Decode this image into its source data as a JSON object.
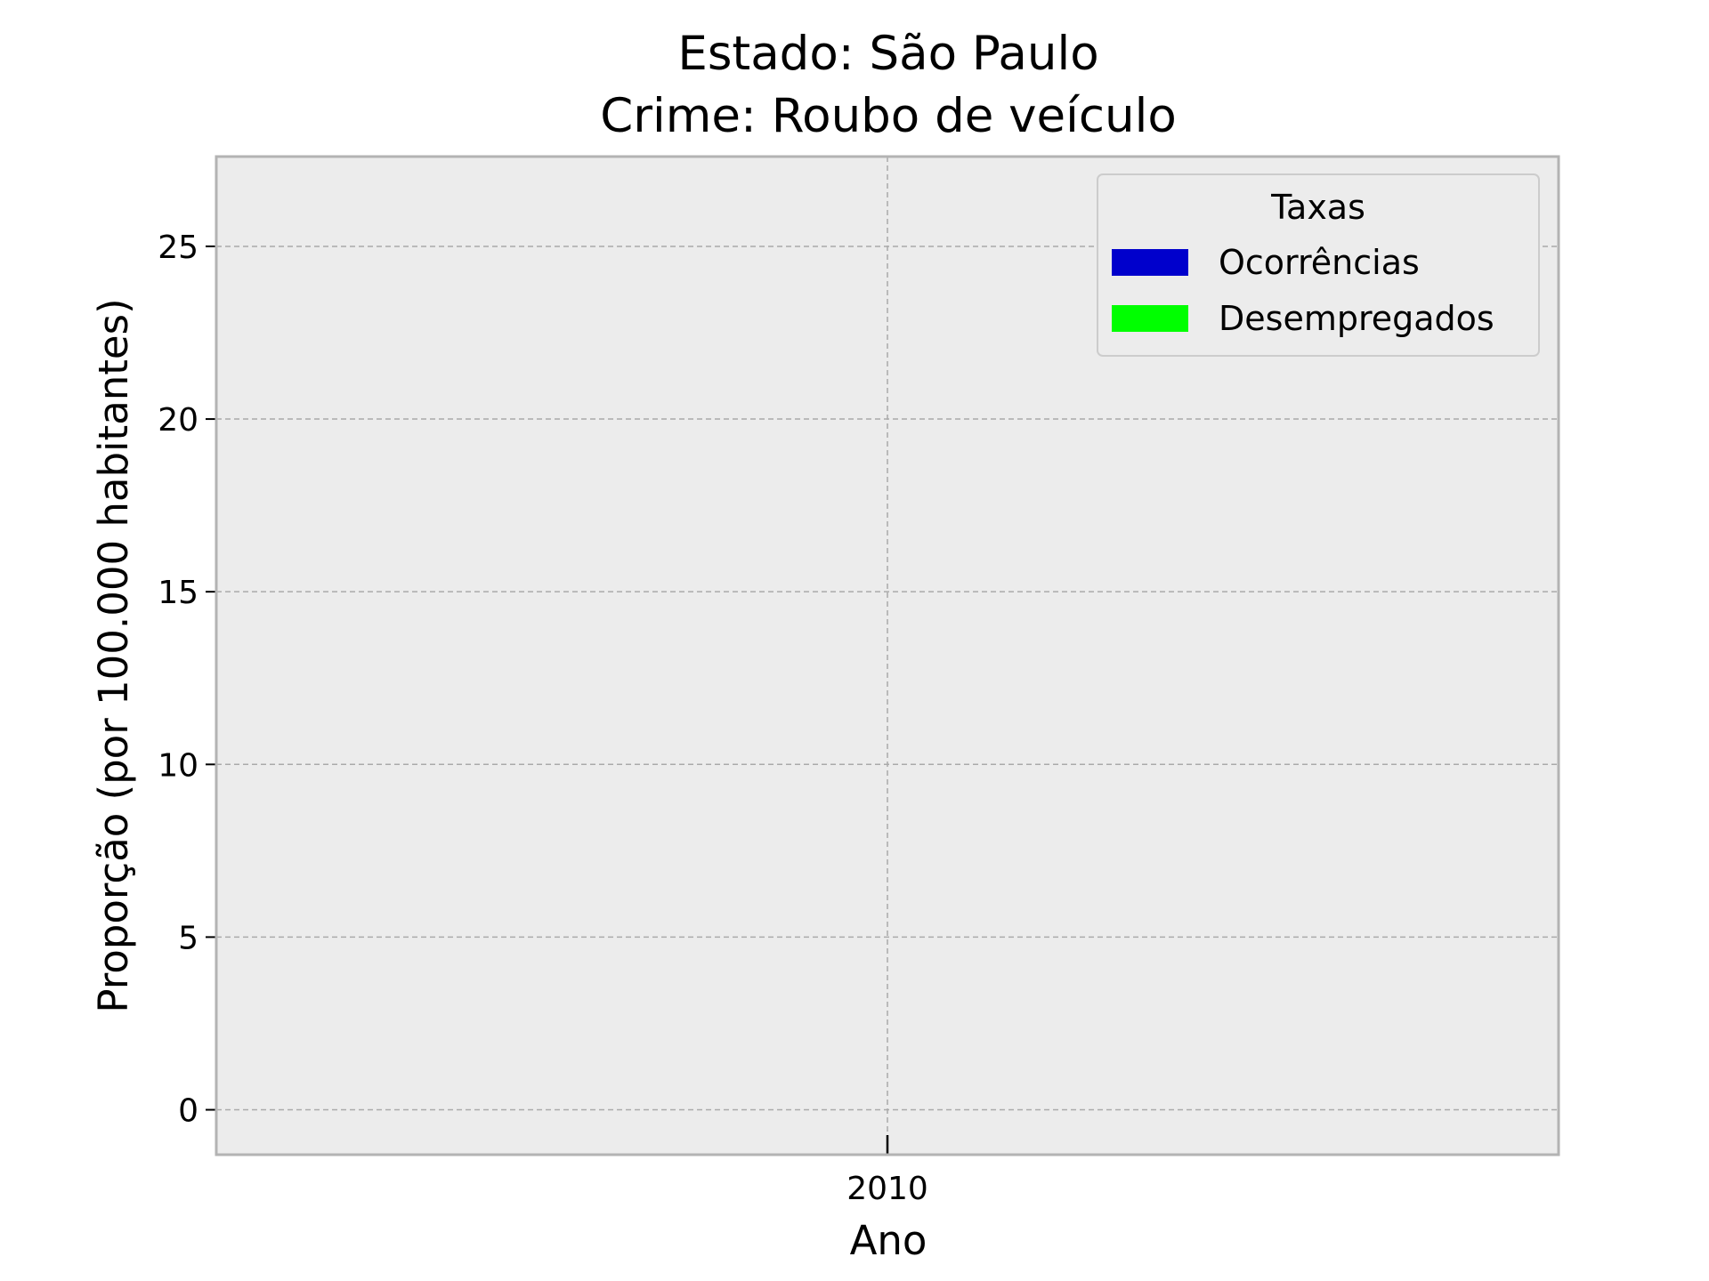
{
  "chart_data": {
    "type": "bar",
    "title_lines": [
      "Estado: São Paulo",
      "Crime: Roubo de veículo"
    ],
    "xlabel": "Ano",
    "ylabel": "Proporção (por 100.000 habitantes)",
    "categories": [
      "2010"
    ],
    "x_ticks": [
      "2010"
    ],
    "y_ticks": [
      "0",
      "5",
      "10",
      "15",
      "20",
      "25"
    ],
    "ylim": [
      -1.3,
      27.6
    ],
    "grid": true,
    "legend": {
      "title": "Taxas",
      "position": "top-right",
      "entries": [
        {
          "label": "Ocorrências",
          "color": "#0000cc"
        },
        {
          "label": "Desempregados",
          "color": "#00ff00"
        }
      ]
    },
    "series": [
      {
        "name": "Ocorrências",
        "color": "#0000cc",
        "values": [
          0
        ]
      },
      {
        "name": "Desempregados",
        "color": "#00ff00",
        "values": [
          0
        ]
      }
    ],
    "colors": {
      "plot_background": "#ececec",
      "grid": "#aaaaaa",
      "frame": "#b3b3b3"
    }
  }
}
